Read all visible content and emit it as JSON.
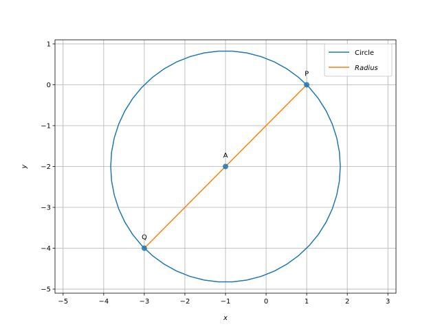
{
  "chart_data": {
    "type": "line",
    "title": "",
    "xlabel": "x",
    "ylabel": "y",
    "xlim": [
      -5.2,
      3.2
    ],
    "ylim": [
      -5.1,
      1.1
    ],
    "xticks": [
      -5,
      -4,
      -3,
      -2,
      -1,
      0,
      1,
      2,
      3
    ],
    "yticks": [
      -5,
      -4,
      -3,
      -2,
      -1,
      0,
      1
    ],
    "grid": true,
    "legend_position": "top-right",
    "circle": {
      "center": [
        -1,
        -2
      ],
      "radius": 2.828
    },
    "series": [
      {
        "name": "Circle",
        "kind": "circle",
        "color": "#1f77b4"
      },
      {
        "name": "Radius",
        "kind": "segment",
        "color": "#ff7f0e",
        "x": [
          -3,
          1
        ],
        "y": [
          -4,
          0
        ]
      }
    ],
    "points": [
      {
        "label": "A",
        "x": -1,
        "y": -2
      },
      {
        "label": "P",
        "x": 1,
        "y": 0
      },
      {
        "label": "Q",
        "x": -3,
        "y": -4
      }
    ]
  }
}
